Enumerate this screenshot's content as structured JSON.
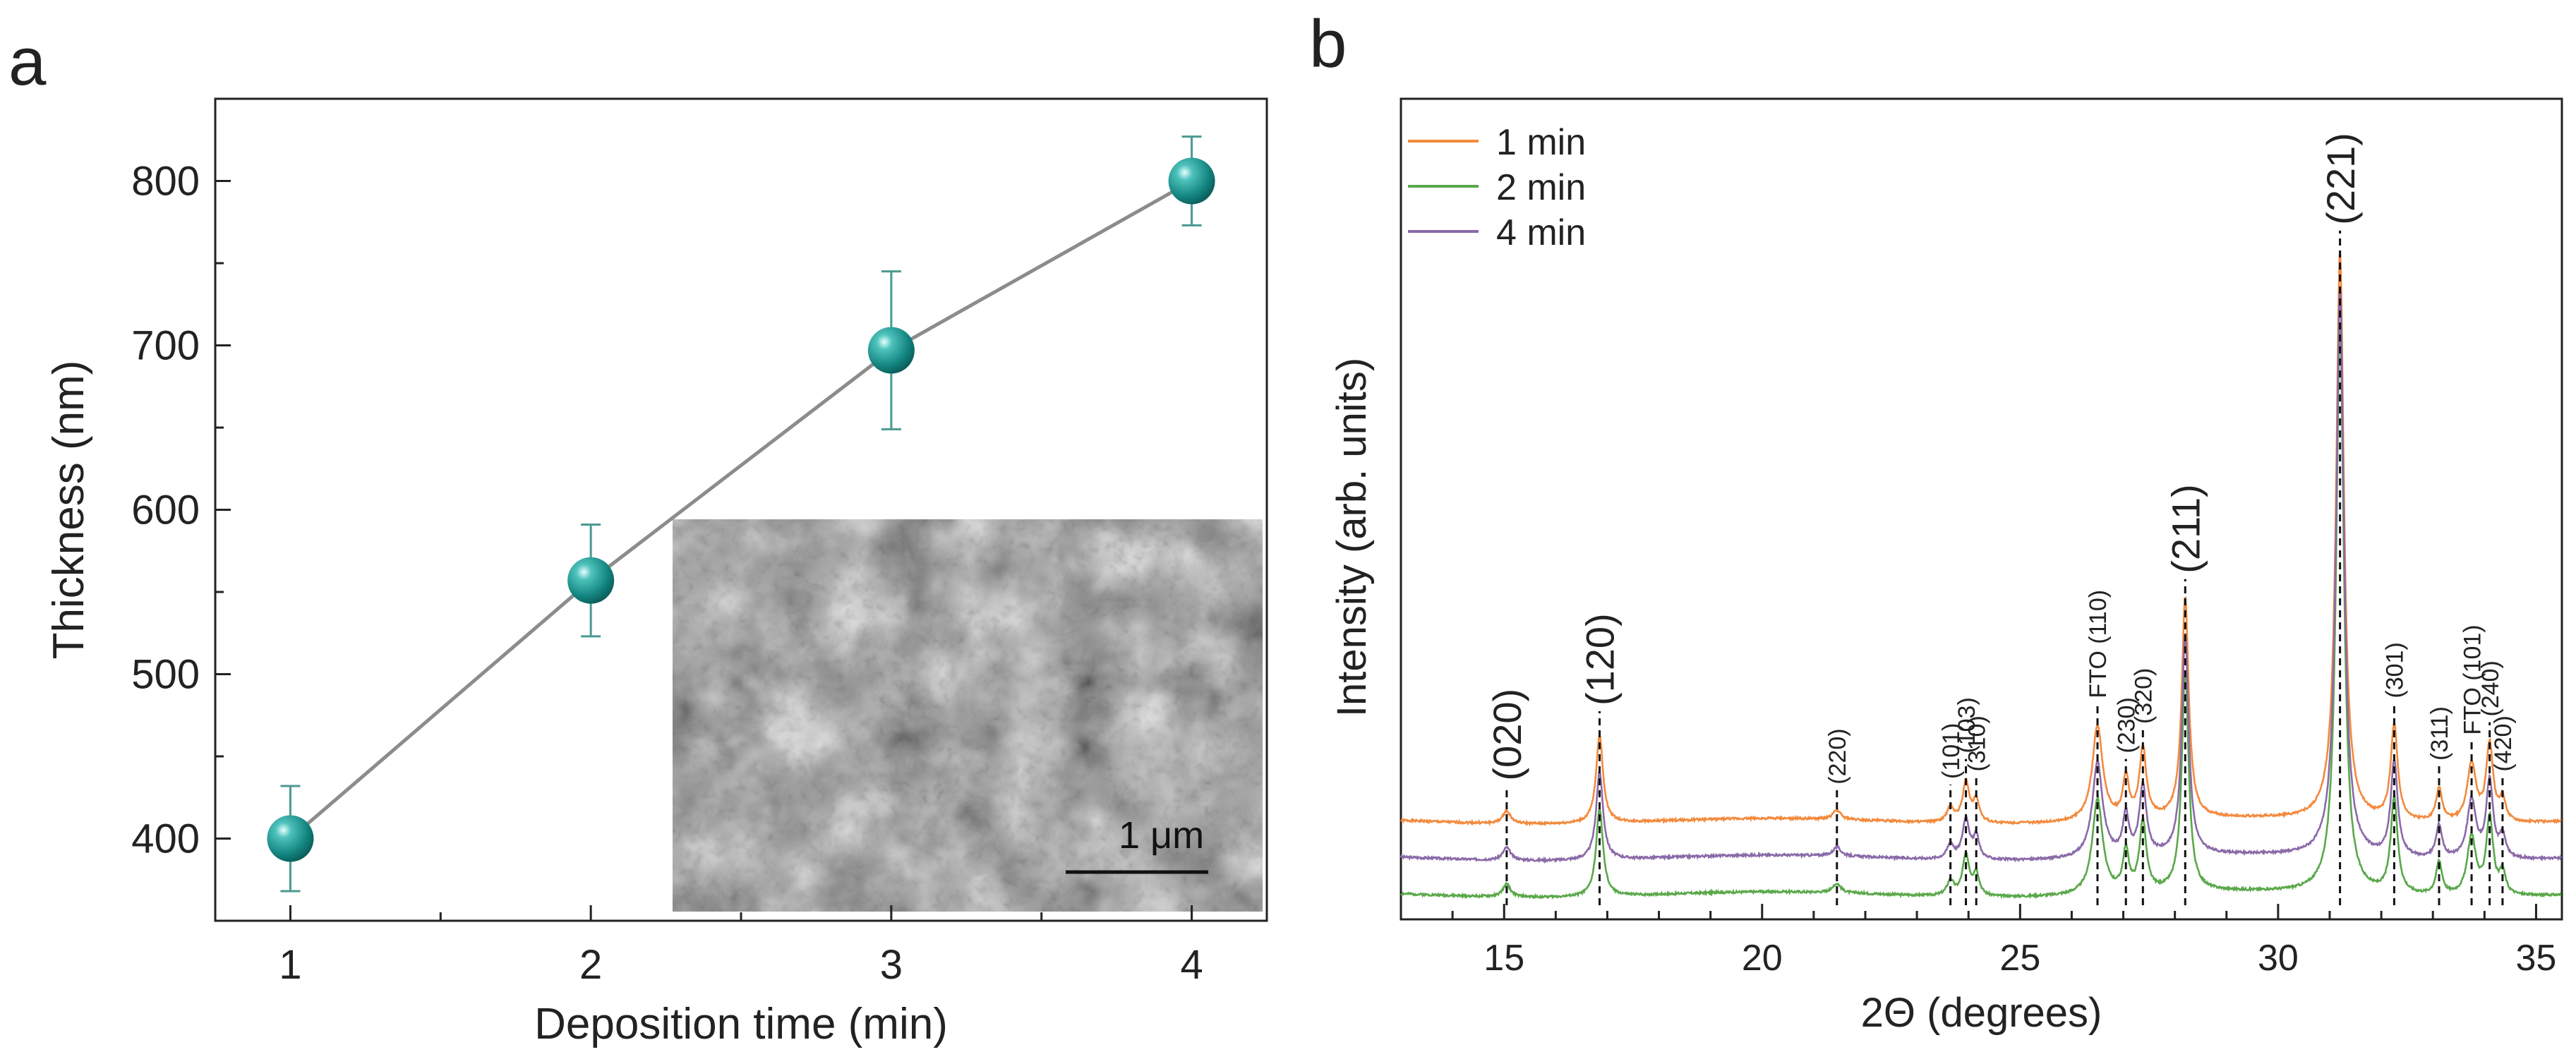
{
  "panels": {
    "a": {
      "label": "a"
    },
    "b": {
      "label": "b"
    }
  },
  "colors": {
    "axis": "#222222",
    "fit_line": "#8c8c8c",
    "marker": "#1a8f8a",
    "marker_highlight": "#e6ffff",
    "errorbar": "#4a9a8f",
    "series_1min": "#f28a3d",
    "series_2min": "#5aa84a",
    "series_4min": "#8a6aa8"
  },
  "inset": {
    "scale_bar_label": "1 μm"
  },
  "chart_data": [
    {
      "type": "scatter",
      "panel": "a",
      "title": "",
      "xlabel": "Deposition time (min)",
      "ylabel": "Thickness (nm)",
      "xlim": [
        0.75,
        4.25
      ],
      "ylim": [
        350,
        850
      ],
      "xticks": [
        1,
        2,
        3,
        4
      ],
      "yticks": [
        400,
        500,
        600,
        700,
        800
      ],
      "points": [
        {
          "x": 1,
          "y": 400,
          "err": 32
        },
        {
          "x": 2,
          "y": 557,
          "err": 34
        },
        {
          "x": 3,
          "y": 697,
          "err": 48
        },
        {
          "x": 4,
          "y": 800,
          "err": 27
        }
      ],
      "connect_line": true,
      "inset": "SEM micrograph"
    },
    {
      "type": "line",
      "panel": "b",
      "title": "",
      "xlabel": "2Θ (degrees)",
      "ylabel": "Intensity (arb. units)",
      "xlim": [
        13,
        35.5
      ],
      "xticks": [
        15,
        20,
        25,
        30,
        35
      ],
      "legend": {
        "position": "top-left"
      },
      "series": [
        {
          "name": "1 min",
          "offset": 0.4,
          "noise": 0.006,
          "seed": 1
        },
        {
          "name": "2 min",
          "offset": 0.0,
          "noise": 0.006,
          "seed": 2
        },
        {
          "name": "4 min",
          "offset": 0.2,
          "noise": 0.006,
          "seed": 3
        }
      ],
      "peaks": [
        {
          "pos": 15.05,
          "height": 0.07,
          "width": 0.09
        },
        {
          "pos": 16.85,
          "height": 0.48,
          "width": 0.08
        },
        {
          "pos": 21.45,
          "height": 0.05,
          "width": 0.09
        },
        {
          "pos": 23.65,
          "height": 0.08,
          "width": 0.08
        },
        {
          "pos": 23.95,
          "height": 0.22,
          "width": 0.08
        },
        {
          "pos": 24.15,
          "height": 0.12,
          "width": 0.07
        },
        {
          "pos": 26.5,
          "height": 0.52,
          "width": 0.12
        },
        {
          "pos": 27.05,
          "height": 0.22,
          "width": 0.07
        },
        {
          "pos": 27.38,
          "height": 0.38,
          "width": 0.08
        },
        {
          "pos": 28.2,
          "height": 1.2,
          "width": 0.08
        },
        {
          "pos": 31.2,
          "height": 3.1,
          "width": 0.09
        },
        {
          "pos": 32.25,
          "height": 0.52,
          "width": 0.08
        },
        {
          "pos": 33.12,
          "height": 0.18,
          "width": 0.07
        },
        {
          "pos": 33.75,
          "height": 0.32,
          "width": 0.1
        },
        {
          "pos": 34.1,
          "height": 0.42,
          "width": 0.08
        },
        {
          "pos": 34.35,
          "height": 0.12,
          "width": 0.07
        }
      ],
      "reference_lines": [
        {
          "pos": 15.05,
          "label": "(020)",
          "size": "large"
        },
        {
          "pos": 16.85,
          "label": "(120)",
          "size": "large"
        },
        {
          "pos": 21.45,
          "label": "(220)",
          "size": "small"
        },
        {
          "pos": 23.65,
          "label": "(101)",
          "size": "small"
        },
        {
          "pos": 23.95,
          "label": "(103)",
          "size": "small"
        },
        {
          "pos": 24.15,
          "label": "(310)",
          "size": "small"
        },
        {
          "pos": 26.5,
          "label": "FTO (110)",
          "size": "small"
        },
        {
          "pos": 27.05,
          "label": "(230)",
          "size": "small"
        },
        {
          "pos": 27.38,
          "label": "(320)",
          "size": "small"
        },
        {
          "pos": 28.2,
          "label": "(211)",
          "size": "large"
        },
        {
          "pos": 31.2,
          "label": "(221)",
          "size": "large"
        },
        {
          "pos": 32.25,
          "label": "(301)",
          "size": "small"
        },
        {
          "pos": 33.12,
          "label": "(311)",
          "size": "small"
        },
        {
          "pos": 33.75,
          "label": "FTO (101)",
          "size": "small"
        },
        {
          "pos": 34.1,
          "label": "(240)",
          "size": "small"
        },
        {
          "pos": 34.35,
          "label": "(420)",
          "size": "small"
        }
      ]
    }
  ]
}
